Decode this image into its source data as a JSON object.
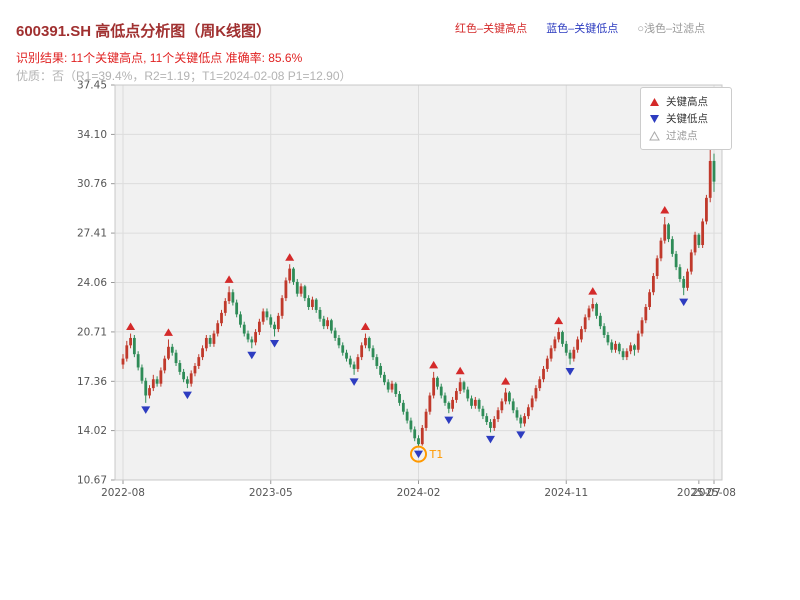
{
  "header": {
    "title": "600391.SH 高低点分析图（周K线图）",
    "note_high": "红色–关键高点",
    "note_low": "蓝色–关键低点",
    "note_filtered": "○浅色–过滤点",
    "result_line": "识别结果: 11个关键高点, 11个关键低点  准确率: 85.6%",
    "quality_line": "优质：否（R1=39.4%，R2=1.19；T1=2024-02-08 P1=12.90）"
  },
  "legend": {
    "items": [
      {
        "label": "关键高点",
        "fill": "#d42a2a",
        "stroke": "none"
      },
      {
        "label": "关键低点",
        "fill": "#2d3cc0",
        "stroke": "none"
      },
      {
        "label": "过滤点",
        "fill": "#ffffff",
        "stroke": "#aaaaaa"
      }
    ]
  },
  "chart_data": {
    "type": "candlestick",
    "title": "600391.SH 高低点分析图（周K线图）",
    "xlabel": "",
    "ylabel": "",
    "ylim": [
      10.67,
      37.45
    ],
    "y_ticks": [
      "37.45",
      "34.10",
      "30.76",
      "27.41",
      "24.06",
      "20.71",
      "17.36",
      "14.02",
      "10.67"
    ],
    "x_ticks": [
      {
        "i": 0,
        "label": "2022-08",
        "grid": true
      },
      {
        "i": 39,
        "label": "2023-05",
        "grid": true
      },
      {
        "i": 78,
        "label": "2024-02",
        "grid": true
      },
      {
        "i": 117,
        "label": "2024-11",
        "grid": true
      },
      {
        "i": 152,
        "label": "2025-07",
        "grid": false
      },
      {
        "i": 156,
        "label": "2025-08",
        "grid": true
      }
    ],
    "colors": {
      "up": "#c0392b",
      "down": "#2e8b57",
      "high_marker": "#d42a2a",
      "low_marker": "#2d3cc0",
      "plot_bg": "#f1f1f1",
      "grid": "#dcdcdc",
      "spine": "#c8c8c8",
      "tick_text": "#555555"
    },
    "candles": [
      [
        18.5,
        19.2,
        18.2,
        18.9
      ],
      [
        18.9,
        20.1,
        18.7,
        19.8
      ],
      [
        19.8,
        20.6,
        19.6,
        20.3
      ],
      [
        20.3,
        20.5,
        19.0,
        19.2
      ],
      [
        19.2,
        19.4,
        18.1,
        18.3
      ],
      [
        18.3,
        18.5,
        17.2,
        17.4
      ],
      [
        17.4,
        17.6,
        15.9,
        16.4
      ],
      [
        16.4,
        17.1,
        16.2,
        16.9
      ],
      [
        16.9,
        17.8,
        16.7,
        17.5
      ],
      [
        17.5,
        17.7,
        17.0,
        17.2
      ],
      [
        17.2,
        18.3,
        17.0,
        18.1
      ],
      [
        18.1,
        19.1,
        17.9,
        18.9
      ],
      [
        18.9,
        20.2,
        18.8,
        19.7
      ],
      [
        19.7,
        19.9,
        19.1,
        19.3
      ],
      [
        19.3,
        19.5,
        18.4,
        18.6
      ],
      [
        18.6,
        18.8,
        17.8,
        18.0
      ],
      [
        18.0,
        18.2,
        17.3,
        17.5
      ],
      [
        17.5,
        17.7,
        16.9,
        17.2
      ],
      [
        17.2,
        18.1,
        17.0,
        17.9
      ],
      [
        17.9,
        18.6,
        17.7,
        18.4
      ],
      [
        18.4,
        19.2,
        18.2,
        19.0
      ],
      [
        19.0,
        19.8,
        18.8,
        19.6
      ],
      [
        19.6,
        20.5,
        19.4,
        20.3
      ],
      [
        20.3,
        20.5,
        19.7,
        19.9
      ],
      [
        19.9,
        20.8,
        19.7,
        20.6
      ],
      [
        20.6,
        21.5,
        20.4,
        21.3
      ],
      [
        21.3,
        22.2,
        21.1,
        22.0
      ],
      [
        22.0,
        23.0,
        21.8,
        22.8
      ],
      [
        22.8,
        23.8,
        22.6,
        23.4
      ],
      [
        23.4,
        23.6,
        22.5,
        22.7
      ],
      [
        22.7,
        22.9,
        21.7,
        21.9
      ],
      [
        21.9,
        22.1,
        21.0,
        21.2
      ],
      [
        21.2,
        21.4,
        20.4,
        20.6
      ],
      [
        20.6,
        20.8,
        20.0,
        20.2
      ],
      [
        20.2,
        20.4,
        19.6,
        20.0
      ],
      [
        20.0,
        20.9,
        19.8,
        20.7
      ],
      [
        20.7,
        21.6,
        20.5,
        21.4
      ],
      [
        21.4,
        22.3,
        21.2,
        22.1
      ],
      [
        22.1,
        22.3,
        21.5,
        21.7
      ],
      [
        21.7,
        21.9,
        21.0,
        21.2
      ],
      [
        21.2,
        21.4,
        20.4,
        20.9
      ],
      [
        20.9,
        22.0,
        20.7,
        21.8
      ],
      [
        21.8,
        23.2,
        21.6,
        23.0
      ],
      [
        23.0,
        24.4,
        22.8,
        24.2
      ],
      [
        24.2,
        25.3,
        24.0,
        25.0
      ],
      [
        25.0,
        25.1,
        23.9,
        24.1
      ],
      [
        24.1,
        24.3,
        23.1,
        23.3
      ],
      [
        23.3,
        24.0,
        23.1,
        23.8
      ],
      [
        23.8,
        23.9,
        22.8,
        23.0
      ],
      [
        23.0,
        23.2,
        22.2,
        22.4
      ],
      [
        22.4,
        23.1,
        22.2,
        22.9
      ],
      [
        22.9,
        23.0,
        22.0,
        22.2
      ],
      [
        22.2,
        22.4,
        21.4,
        21.6
      ],
      [
        21.6,
        21.8,
        20.9,
        21.1
      ],
      [
        21.1,
        21.7,
        20.9,
        21.5
      ],
      [
        21.5,
        21.6,
        20.6,
        20.8
      ],
      [
        20.8,
        21.0,
        20.1,
        20.3
      ],
      [
        20.3,
        20.5,
        19.6,
        19.8
      ],
      [
        19.8,
        20.0,
        19.1,
        19.3
      ],
      [
        19.3,
        19.5,
        18.7,
        18.9
      ],
      [
        18.9,
        19.1,
        18.3,
        18.5
      ],
      [
        18.5,
        18.7,
        17.8,
        18.2
      ],
      [
        18.2,
        19.2,
        18.0,
        19.0
      ],
      [
        19.0,
        20.0,
        18.8,
        19.8
      ],
      [
        19.8,
        20.6,
        19.6,
        20.3
      ],
      [
        20.3,
        20.4,
        19.4,
        19.6
      ],
      [
        19.6,
        19.8,
        18.8,
        19.0
      ],
      [
        19.0,
        19.2,
        18.2,
        18.4
      ],
      [
        18.4,
        18.6,
        17.6,
        17.8
      ],
      [
        17.8,
        18.0,
        17.1,
        17.3
      ],
      [
        17.3,
        17.5,
        16.6,
        16.8
      ],
      [
        16.8,
        17.4,
        16.6,
        17.2
      ],
      [
        17.2,
        17.3,
        16.3,
        16.5
      ],
      [
        16.5,
        16.7,
        15.7,
        15.9
      ],
      [
        15.9,
        16.1,
        15.1,
        15.3
      ],
      [
        15.3,
        15.5,
        14.5,
        14.7
      ],
      [
        14.7,
        14.9,
        13.9,
        14.1
      ],
      [
        14.1,
        14.3,
        13.3,
        13.5
      ],
      [
        13.5,
        13.7,
        12.9,
        13.1
      ],
      [
        13.1,
        14.4,
        13.0,
        14.2
      ],
      [
        14.2,
        15.5,
        14.0,
        15.3
      ],
      [
        15.3,
        16.6,
        15.1,
        16.4
      ],
      [
        16.4,
        18.0,
        16.2,
        17.6
      ],
      [
        17.6,
        17.7,
        16.8,
        17.0
      ],
      [
        17.0,
        17.2,
        16.2,
        16.4
      ],
      [
        16.4,
        16.6,
        15.7,
        15.9
      ],
      [
        15.9,
        16.0,
        15.2,
        15.5
      ],
      [
        15.5,
        16.3,
        15.3,
        16.1
      ],
      [
        16.1,
        16.9,
        15.9,
        16.7
      ],
      [
        16.7,
        17.6,
        16.5,
        17.3
      ],
      [
        17.3,
        17.4,
        16.6,
        16.8
      ],
      [
        16.8,
        17.0,
        16.0,
        16.2
      ],
      [
        16.2,
        16.4,
        15.5,
        15.7
      ],
      [
        15.7,
        16.3,
        15.5,
        16.1
      ],
      [
        16.1,
        16.2,
        15.3,
        15.5
      ],
      [
        15.5,
        15.7,
        14.8,
        15.0
      ],
      [
        15.0,
        15.2,
        14.4,
        14.6
      ],
      [
        14.6,
        14.8,
        13.9,
        14.2
      ],
      [
        14.2,
        15.0,
        14.0,
        14.8
      ],
      [
        14.8,
        15.6,
        14.6,
        15.4
      ],
      [
        15.4,
        16.2,
        15.2,
        16.0
      ],
      [
        16.0,
        16.9,
        15.8,
        16.6
      ],
      [
        16.6,
        16.7,
        15.8,
        16.0
      ],
      [
        16.0,
        16.2,
        15.2,
        15.4
      ],
      [
        15.4,
        15.6,
        14.7,
        14.9
      ],
      [
        14.9,
        15.1,
        14.2,
        14.5
      ],
      [
        14.5,
        15.2,
        14.3,
        15.0
      ],
      [
        15.0,
        15.8,
        14.8,
        15.6
      ],
      [
        15.6,
        16.4,
        15.4,
        16.2
      ],
      [
        16.2,
        17.1,
        16.0,
        16.9
      ],
      [
        16.9,
        17.7,
        16.7,
        17.5
      ],
      [
        17.5,
        18.4,
        17.3,
        18.2
      ],
      [
        18.2,
        19.1,
        18.0,
        18.9
      ],
      [
        18.9,
        19.8,
        18.7,
        19.6
      ],
      [
        19.6,
        20.4,
        19.4,
        20.2
      ],
      [
        20.2,
        21.0,
        20.0,
        20.7
      ],
      [
        20.7,
        20.8,
        19.7,
        19.9
      ],
      [
        19.9,
        20.1,
        19.1,
        19.3
      ],
      [
        19.3,
        19.5,
        18.5,
        18.9
      ],
      [
        18.9,
        19.7,
        18.7,
        19.5
      ],
      [
        19.5,
        20.4,
        19.3,
        20.2
      ],
      [
        20.2,
        21.1,
        20.0,
        20.9
      ],
      [
        20.9,
        21.9,
        20.7,
        21.7
      ],
      [
        21.7,
        22.5,
        21.5,
        22.3
      ],
      [
        22.3,
        23.0,
        22.1,
        22.6
      ],
      [
        22.6,
        22.7,
        21.6,
        21.8
      ],
      [
        21.8,
        22.0,
        20.9,
        21.1
      ],
      [
        21.1,
        21.3,
        20.3,
        20.5
      ],
      [
        20.5,
        20.7,
        19.8,
        20.0
      ],
      [
        20.0,
        20.2,
        19.3,
        19.5
      ],
      [
        19.5,
        20.1,
        19.3,
        19.9
      ],
      [
        19.9,
        20.0,
        19.2,
        19.4
      ],
      [
        19.4,
        19.6,
        18.8,
        19.0
      ],
      [
        19.0,
        19.6,
        18.8,
        19.4
      ],
      [
        19.4,
        20.0,
        19.2,
        19.8
      ],
      [
        19.8,
        19.9,
        19.1,
        19.5
      ],
      [
        19.5,
        20.8,
        19.3,
        20.6
      ],
      [
        20.6,
        21.7,
        20.4,
        21.5
      ],
      [
        21.5,
        22.6,
        21.3,
        22.4
      ],
      [
        22.4,
        23.6,
        22.2,
        23.4
      ],
      [
        23.4,
        24.7,
        23.2,
        24.5
      ],
      [
        24.5,
        25.9,
        24.3,
        25.7
      ],
      [
        25.7,
        27.1,
        25.5,
        26.9
      ],
      [
        26.9,
        28.5,
        26.7,
        28.0
      ],
      [
        28.0,
        28.1,
        26.8,
        27.0
      ],
      [
        27.0,
        27.2,
        25.8,
        26.0
      ],
      [
        26.0,
        26.2,
        24.9,
        25.1
      ],
      [
        25.1,
        25.3,
        24.1,
        24.3
      ],
      [
        24.3,
        24.5,
        23.2,
        23.7
      ],
      [
        23.7,
        25.0,
        23.5,
        24.8
      ],
      [
        24.8,
        26.3,
        24.6,
        26.1
      ],
      [
        26.1,
        27.5,
        25.9,
        27.3
      ],
      [
        27.3,
        27.4,
        26.4,
        26.6
      ],
      [
        26.6,
        28.4,
        26.4,
        28.2
      ],
      [
        28.2,
        30.0,
        28.0,
        29.8
      ],
      [
        29.8,
        35.2,
        29.5,
        32.3
      ],
      [
        32.3,
        32.8,
        30.2,
        30.9
      ]
    ],
    "key_highs": [
      {
        "i": 2,
        "p": 20.6
      },
      {
        "i": 12,
        "p": 20.2
      },
      {
        "i": 28,
        "p": 23.8
      },
      {
        "i": 44,
        "p": 25.3
      },
      {
        "i": 64,
        "p": 20.6
      },
      {
        "i": 82,
        "p": 18.0
      },
      {
        "i": 89,
        "p": 17.6
      },
      {
        "i": 101,
        "p": 16.9
      },
      {
        "i": 115,
        "p": 21.0
      },
      {
        "i": 124,
        "p": 23.0
      },
      {
        "i": 143,
        "p": 28.5
      }
    ],
    "key_lows": [
      {
        "i": 6,
        "p": 15.9
      },
      {
        "i": 17,
        "p": 16.9
      },
      {
        "i": 34,
        "p": 19.6
      },
      {
        "i": 40,
        "p": 20.4
      },
      {
        "i": 61,
        "p": 17.8
      },
      {
        "i": 78,
        "p": 12.9
      },
      {
        "i": 86,
        "p": 15.2
      },
      {
        "i": 97,
        "p": 13.9
      },
      {
        "i": 105,
        "p": 14.2
      },
      {
        "i": 118,
        "p": 18.5
      },
      {
        "i": 148,
        "p": 23.2
      }
    ],
    "annotation": {
      "label": "T1",
      "i": 78,
      "p": 12.9,
      "color": "#ff9900"
    },
    "legend_position": "upper right",
    "grid": true
  }
}
